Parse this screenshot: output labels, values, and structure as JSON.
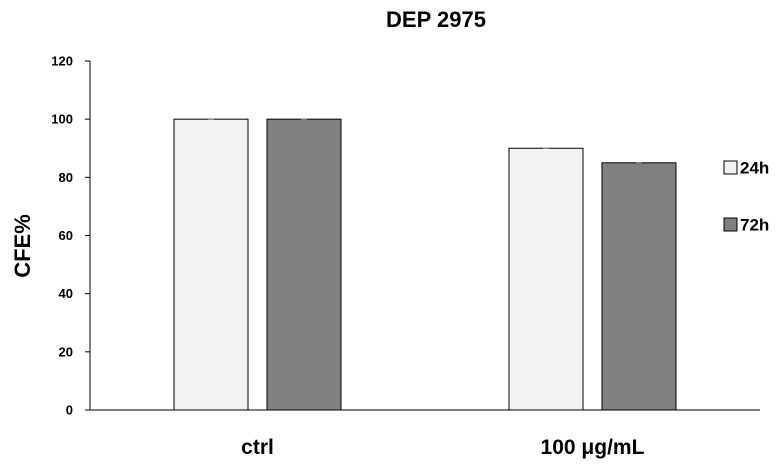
{
  "chart_data": {
    "type": "bar",
    "title": "DEP 2975",
    "xlabel": "",
    "ylabel": "CFE%",
    "categories": [
      "ctrl",
      "100  μg/mL"
    ],
    "series": [
      {
        "name": "24h",
        "values": [
          100,
          90
        ],
        "color": "#f2f2f2"
      },
      {
        "name": "72h",
        "values": [
          100,
          85
        ],
        "color": "#808080"
      }
    ],
    "ylim": [
      0,
      120
    ],
    "yticks": [
      0,
      20,
      40,
      60,
      80,
      100,
      120
    ],
    "grid": false,
    "legend_position": "right"
  }
}
